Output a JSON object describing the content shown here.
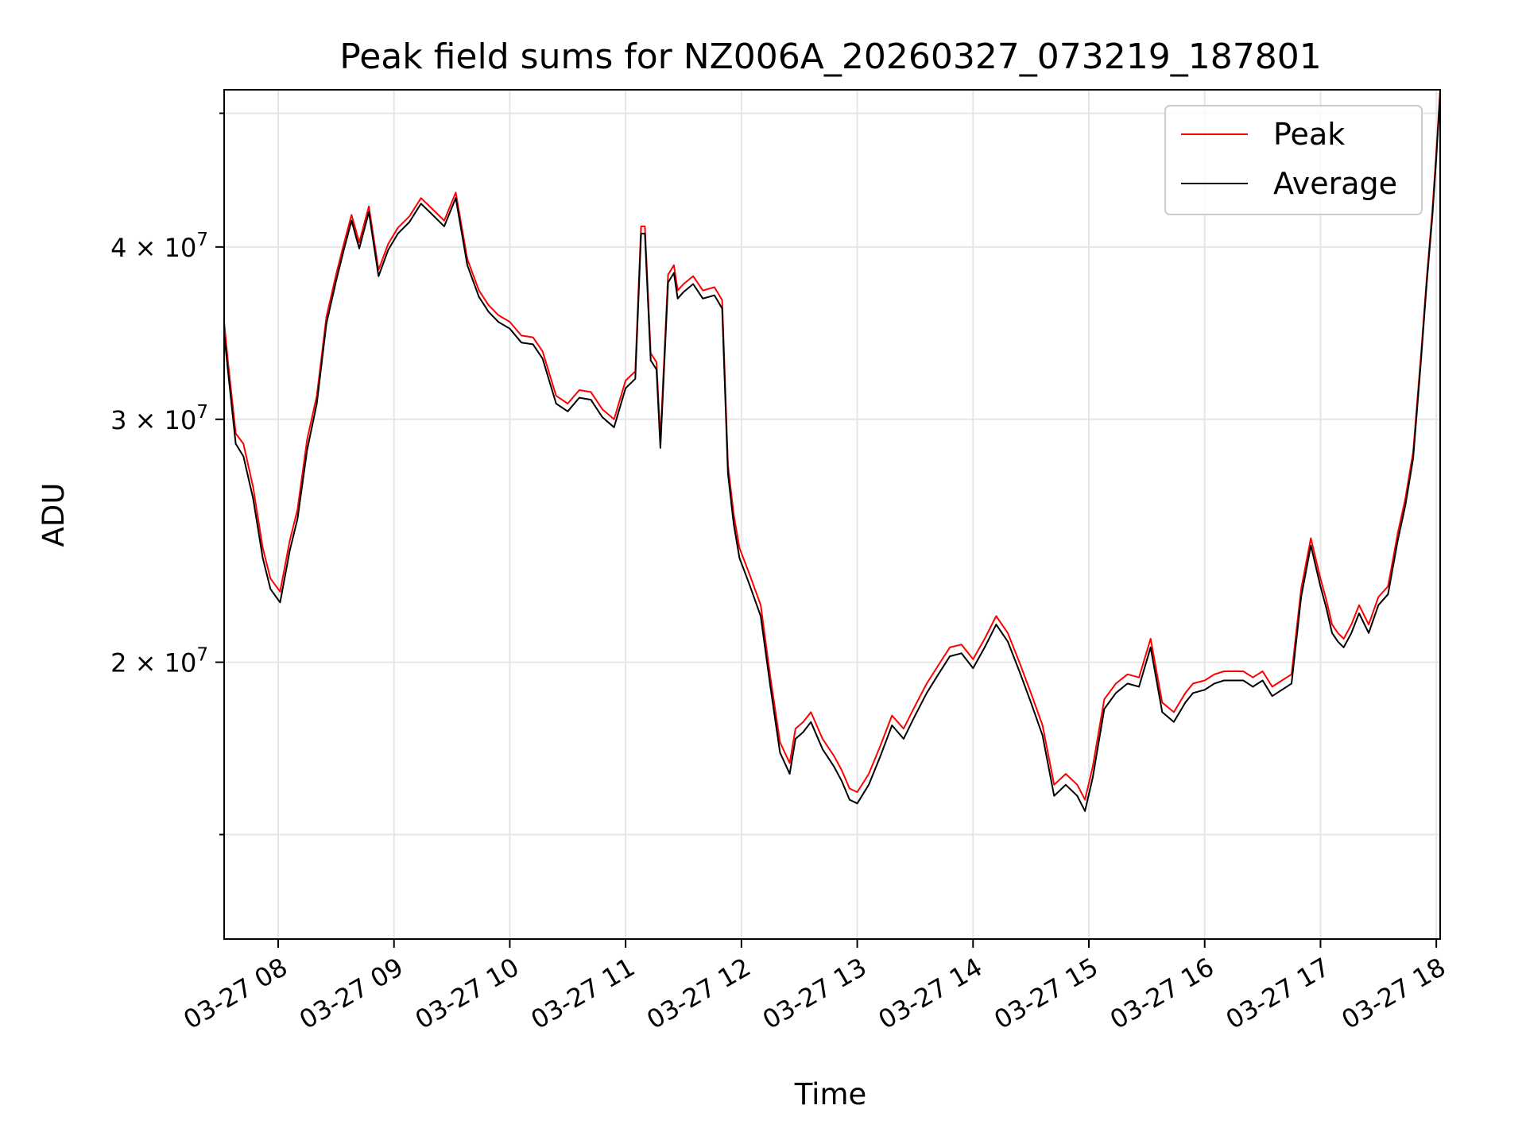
{
  "chart_data": {
    "type": "line",
    "title": "Peak field sums for NZ006A_20260327_073219_187801",
    "xlabel": "Time",
    "ylabel": "ADU",
    "y_scale": "log",
    "grid": true,
    "legend_position": "top-right",
    "xlim": [
      "03-27 07:32",
      "03-27 18:02"
    ],
    "ylim": [
      12600000,
      52000000
    ],
    "x_ticks": [
      "03-27 08",
      "03-27 09",
      "03-27 10",
      "03-27 11",
      "03-27 12",
      "03-27 13",
      "03-27 14",
      "03-27 15",
      "03-27 16",
      "03-27 17",
      "03-27 18"
    ],
    "y_ticks": [
      {
        "value": 20000000,
        "mantissa": "2",
        "base": "10",
        "exponent": "7"
      },
      {
        "value": 30000000,
        "mantissa": "3",
        "base": "10",
        "exponent": "7"
      },
      {
        "value": 40000000,
        "mantissa": "4",
        "base": "10",
        "exponent": "7"
      }
    ],
    "x": [
      "07:32",
      "07:34",
      "07:38",
      "07:42",
      "07:47",
      "07:52",
      "07:56",
      "08:01",
      "08:06",
      "08:10",
      "08:15",
      "08:20",
      "08:25",
      "08:30",
      "08:34",
      "08:38",
      "08:42",
      "08:47",
      "08:52",
      "08:57",
      "09:02",
      "09:08",
      "09:14",
      "09:20",
      "09:26",
      "09:32",
      "09:38",
      "09:44",
      "09:49",
      "09:54",
      "10:00",
      "10:06",
      "10:12",
      "10:17",
      "10:24",
      "10:30",
      "10:36",
      "10:42",
      "10:48",
      "10:54",
      "11:00",
      "11:05",
      "11:08",
      "11:10",
      "11:13",
      "11:16",
      "11:18",
      "11:22",
      "11:25",
      "11:27",
      "11:30",
      "11:35",
      "11:40",
      "11:46",
      "11:50",
      "11:53",
      "11:56",
      "11:59",
      "12:04",
      "12:10",
      "12:15",
      "12:20",
      "12:25",
      "12:28",
      "12:32",
      "12:36",
      "12:42",
      "12:48",
      "12:52",
      "12:56",
      "13:00",
      "13:06",
      "13:12",
      "13:18",
      "13:24",
      "13:30",
      "13:36",
      "13:42",
      "13:48",
      "13:54",
      "14:00",
      "14:06",
      "14:12",
      "14:18",
      "14:24",
      "14:30",
      "14:36",
      "14:42",
      "14:48",
      "14:54",
      "14:58",
      "15:02",
      "15:08",
      "15:14",
      "15:20",
      "15:26",
      "15:32",
      "15:38",
      "15:44",
      "15:50",
      "15:54",
      "16:00",
      "16:05",
      "16:10",
      "16:15",
      "16:20",
      "16:25",
      "16:30",
      "16:35",
      "16:40",
      "16:45",
      "16:50",
      "16:55",
      "17:00",
      "17:03",
      "17:06",
      "17:09",
      "17:12",
      "17:16",
      "17:20",
      "17:25",
      "17:30",
      "17:35",
      "17:40",
      "17:44",
      "17:48",
      "17:52",
      "17:55",
      "17:58",
      "18:00",
      "18:02"
    ],
    "series": [
      {
        "name": "Peak",
        "color": "#ff0000",
        "values": [
          35300000,
          33000000,
          29300000,
          28800000,
          26800000,
          24200000,
          23000000,
          22500000,
          24500000,
          25800000,
          29000000,
          31200000,
          35600000,
          38200000,
          40200000,
          42200000,
          40300000,
          42800000,
          38500000,
          40200000,
          41300000,
          42100000,
          43400000,
          42600000,
          41800000,
          43800000,
          39200000,
          37200000,
          36300000,
          35700000,
          35300000,
          34500000,
          34400000,
          33600000,
          31200000,
          30800000,
          31500000,
          31400000,
          30500000,
          30000000,
          32000000,
          32500000,
          41400000,
          41400000,
          33500000,
          33000000,
          29000000,
          38200000,
          38800000,
          37200000,
          37600000,
          38100000,
          37200000,
          37400000,
          36600000,
          27800000,
          25600000,
          24200000,
          23200000,
          22000000,
          19500000,
          17500000,
          16900000,
          17900000,
          18100000,
          18400000,
          17600000,
          17100000,
          16700000,
          16200000,
          16100000,
          16600000,
          17400000,
          18300000,
          17900000,
          18600000,
          19300000,
          19900000,
          20500000,
          20600000,
          20100000,
          20800000,
          21600000,
          21000000,
          20000000,
          19000000,
          18000000,
          16300000,
          16600000,
          16300000,
          15900000,
          16800000,
          18800000,
          19300000,
          19600000,
          19500000,
          20800000,
          18700000,
          18400000,
          19000000,
          19300000,
          19400000,
          19600000,
          19700000,
          19700000,
          19700000,
          19500000,
          19700000,
          19200000,
          19400000,
          19600000,
          22600000,
          24600000,
          23000000,
          22200000,
          21300000,
          21000000,
          20800000,
          21300000,
          22000000,
          21300000,
          22300000,
          22700000,
          24800000,
          26300000,
          28400000,
          33300000,
          37900000,
          42600000,
          46800000,
          52000000
        ]
      },
      {
        "name": "Average",
        "color": "#000000",
        "values": [
          34600000,
          32500000,
          28800000,
          28200000,
          26300000,
          23800000,
          22600000,
          22100000,
          24100000,
          25400000,
          28500000,
          30800000,
          35200000,
          37800000,
          39800000,
          41800000,
          39900000,
          42400000,
          38100000,
          39800000,
          40900000,
          41700000,
          43000000,
          42200000,
          41400000,
          43400000,
          38800000,
          36800000,
          35900000,
          35300000,
          34900000,
          34100000,
          34000000,
          33200000,
          30800000,
          30400000,
          31100000,
          31000000,
          30100000,
          29600000,
          31600000,
          32100000,
          40900000,
          40900000,
          33100000,
          32600000,
          28600000,
          37700000,
          38300000,
          36700000,
          37100000,
          37600000,
          36700000,
          36900000,
          36100000,
          27400000,
          25200000,
          23800000,
          22800000,
          21600000,
          19200000,
          17200000,
          16600000,
          17600000,
          17800000,
          18100000,
          17300000,
          16800000,
          16400000,
          15900000,
          15800000,
          16300000,
          17100000,
          18000000,
          17600000,
          18300000,
          19000000,
          19600000,
          20200000,
          20300000,
          19800000,
          20500000,
          21300000,
          20700000,
          19700000,
          18700000,
          17700000,
          16000000,
          16300000,
          16000000,
          15600000,
          16500000,
          18500000,
          19000000,
          19300000,
          19200000,
          20500000,
          18400000,
          18100000,
          18700000,
          19000000,
          19100000,
          19300000,
          19400000,
          19400000,
          19400000,
          19200000,
          19400000,
          18900000,
          19100000,
          19300000,
          22300000,
          24300000,
          22700000,
          21900000,
          21000000,
          20700000,
          20500000,
          21000000,
          21700000,
          21000000,
          22000000,
          22400000,
          24500000,
          26000000,
          28100000,
          33000000,
          37600000,
          42200000,
          46400000,
          51600000
        ]
      }
    ]
  }
}
